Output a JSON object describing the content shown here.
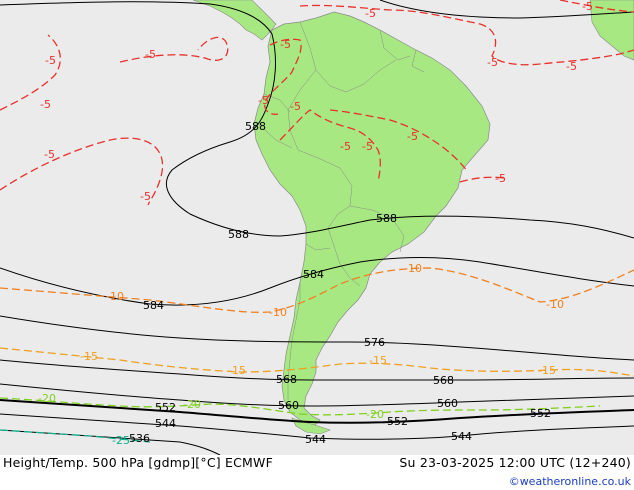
{
  "footer": {
    "title": "Height/Temp. 500 hPa [gdmp][°C] ECMWF",
    "valid_time": "Su 23-03-2025 12:00 UTC (12+240)",
    "credit": "©weatheronline.co.uk"
  },
  "colors": {
    "ocean": "#ebebeb",
    "land": "#a8e882",
    "height_contour": "#000000",
    "temp_minus5": "#e8302c",
    "temp_minus10": "#f08020",
    "temp_minus15": "#f0a020",
    "temp_minus20": "#80d020",
    "temp_minus25": "#10b090"
  },
  "height_contour_labels": {
    "h588_north": "588",
    "h588_west": "588",
    "h588_mid": "588",
    "h584_west": "584",
    "h584_mid": "584",
    "h576": "576",
    "h568_west": "568",
    "h568_east": "568",
    "h560_west": "560",
    "h560_east": "560",
    "h552_west": "552",
    "h552_mid": "552",
    "h552_east": "552",
    "h544_west": "544",
    "h544_mid": "544",
    "h544_east": "544",
    "h536": "536"
  },
  "temperature_labels": {
    "m5_a": "-5",
    "m5_b": "-5",
    "m5_c": "-5",
    "m5_d": "-5",
    "m5_e": "-5",
    "m5_f": "-5",
    "m5_g": "-5",
    "m5_h": "-5",
    "m5_i": "-5",
    "m5_j": "-5",
    "m5_k": "-5",
    "m5_l": "-5",
    "m5_m": "-5",
    "m5_n": "-5",
    "m5_o": "-5",
    "m5_p": "-5",
    "m10_a": "-10",
    "m10_b": "-10",
    "m10_c": "-10",
    "m10_d": "-10",
    "m15_a": "-15",
    "m15_b": "-15",
    "m15_c": "-15",
    "m15_d": "-15",
    "m20_a": "-20",
    "m20_b": "-20",
    "m20_c": "-20",
    "m25_a": "-25"
  }
}
